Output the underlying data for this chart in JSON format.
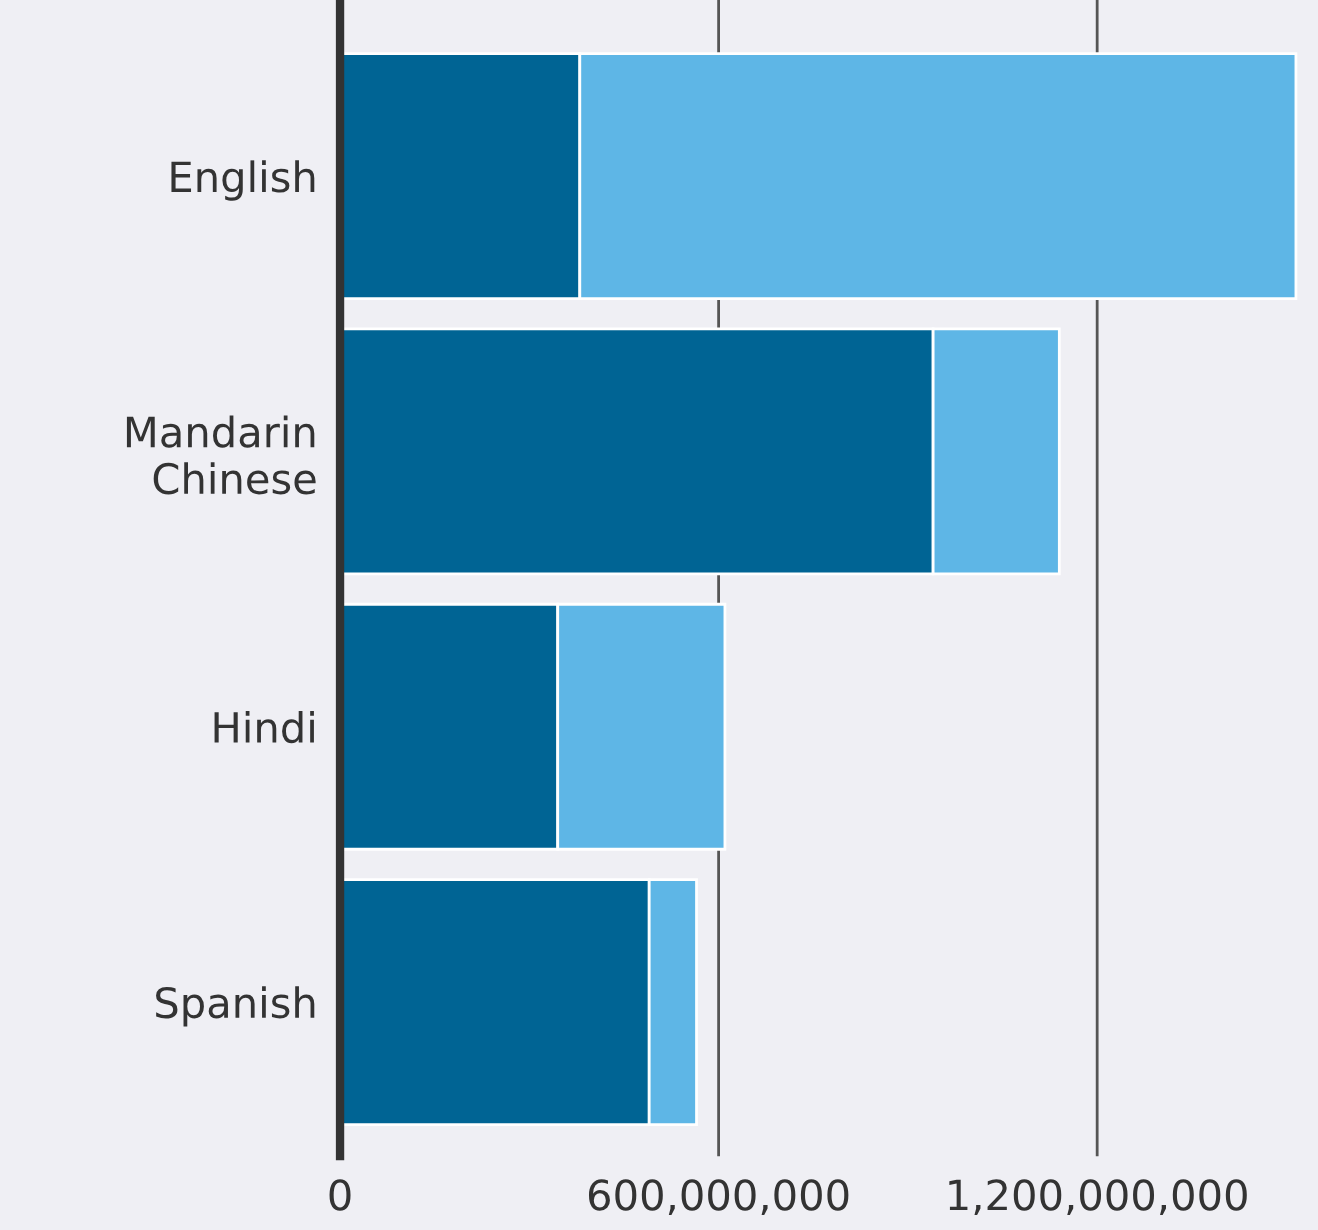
{
  "chart_data": {
    "type": "bar",
    "orientation": "horizontal",
    "stacked": true,
    "categories": [
      "English",
      "Mandarin\nChinese",
      "Hindi",
      "Spanish"
    ],
    "series": [
      {
        "color": "#006494",
        "values": [
          380000000,
          940000000,
          345000000,
          490000000
        ]
      },
      {
        "color": "#5eb6e6",
        "values": [
          1135000000,
          200000000,
          265000000,
          75000000
        ]
      }
    ],
    "xlim": [
      0,
      1550000000
    ],
    "xticks": [
      0,
      {
        "value": 600000000,
        "label": "600,000,000"
      },
      {
        "value": 1200000000,
        "label": "1,200,000,000"
      }
    ],
    "grid": "x",
    "legend": false
  }
}
